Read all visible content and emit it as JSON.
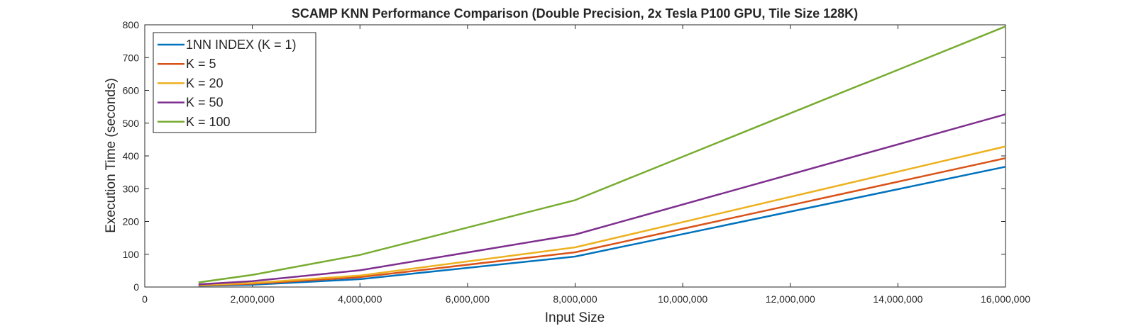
{
  "chart_data": {
    "type": "line",
    "title": "SCAMP KNN Performance Comparison (Double Precision, 2x Tesla P100 GPU, Tile Size 128K)",
    "xlabel": "Input Size",
    "ylabel": "Execution Time (seconds)",
    "xlim": [
      0,
      16000000
    ],
    "ylim": [
      0,
      800
    ],
    "x_ticks": [
      0,
      2000000,
      4000000,
      6000000,
      8000000,
      10000000,
      12000000,
      14000000,
      16000000
    ],
    "x_tick_labels": [
      "0",
      "2,000,000",
      "4,000,000",
      "6,000,000",
      "8,000,000",
      "10,000,000",
      "12,000,000",
      "14,000,000",
      "16,000,000"
    ],
    "y_ticks": [
      0,
      100,
      200,
      300,
      400,
      500,
      600,
      700,
      800
    ],
    "y_tick_labels": [
      "0",
      "100",
      "200",
      "300",
      "400",
      "500",
      "600",
      "700",
      "800"
    ],
    "grid": false,
    "legend_position": "top-left",
    "x": [
      1000000,
      2000000,
      4000000,
      8000000,
      16000000
    ],
    "series": [
      {
        "name": "1NN INDEX (K = 1)",
        "color": "#0072BD",
        "values": [
          4,
          7,
          24,
          93,
          367
        ]
      },
      {
        "name": "K = 5",
        "color": "#D95319",
        "values": [
          5,
          10,
          30,
          106,
          393
        ]
      },
      {
        "name": "K = 20",
        "color": "#EDB120",
        "values": [
          6,
          12,
          35,
          121,
          429
        ]
      },
      {
        "name": "K = 50",
        "color": "#7E2F8E",
        "values": [
          8,
          18,
          51,
          160,
          527
        ]
      },
      {
        "name": "K = 100",
        "color": "#77AC30",
        "values": [
          14,
          37,
          98,
          265,
          795
        ]
      }
    ]
  }
}
